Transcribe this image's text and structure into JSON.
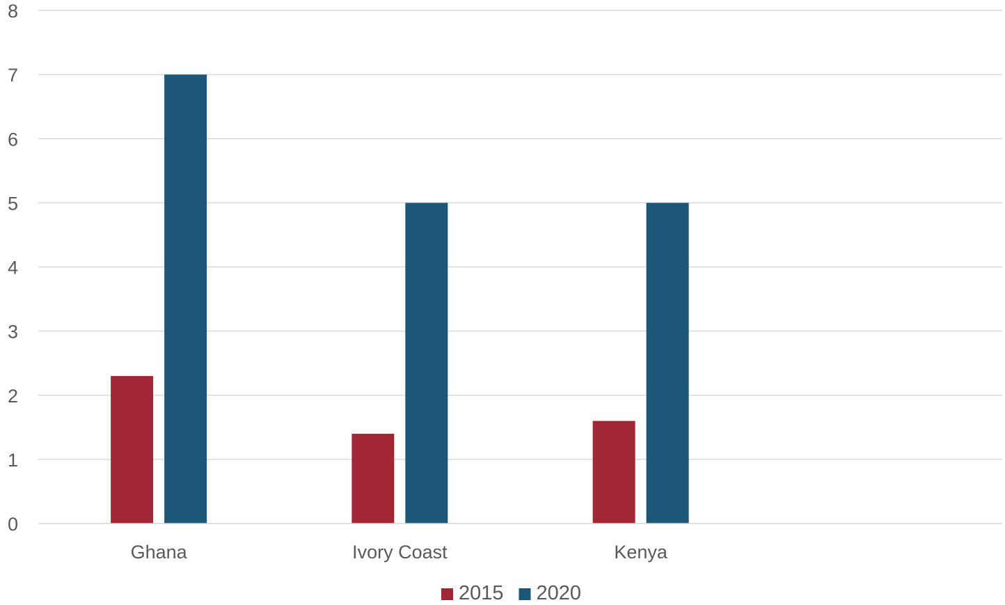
{
  "chart_data": {
    "type": "bar",
    "title": "",
    "xlabel": "",
    "ylabel": "",
    "categories": [
      "Ghana",
      "Ivory Coast",
      "Kenya",
      ""
    ],
    "series": [
      {
        "name": "2015",
        "color": "#a12736",
        "values": [
          2.3,
          1.4,
          1.6,
          null
        ]
      },
      {
        "name": "2020",
        "color": "#1c5778",
        "values": [
          7,
          5,
          5,
          null
        ]
      }
    ],
    "ylim": [
      0,
      8
    ],
    "yticks": [
      0,
      1,
      2,
      3,
      4,
      5,
      6,
      7,
      8
    ],
    "grid": true,
    "legend_position": "bottom"
  }
}
